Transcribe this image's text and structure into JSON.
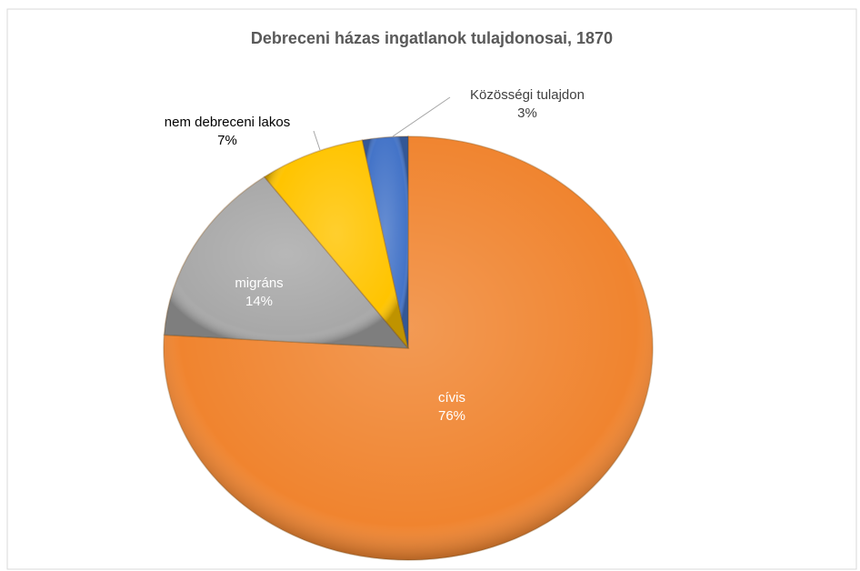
{
  "chart_data": {
    "type": "pie",
    "title": "Debreceni házas ingatlanok tulajdonosai, 1870",
    "categories": [
      "cívis",
      "migráns",
      "nem debreceni lakos",
      "Közösségi tulajdon"
    ],
    "values": [
      76,
      14,
      7,
      3
    ],
    "value_labels": [
      "76%",
      "14%",
      "7%",
      "3%"
    ],
    "colors": [
      "#f0842f",
      "#a8a8a8",
      "#ffc400",
      "#4474c8"
    ]
  }
}
